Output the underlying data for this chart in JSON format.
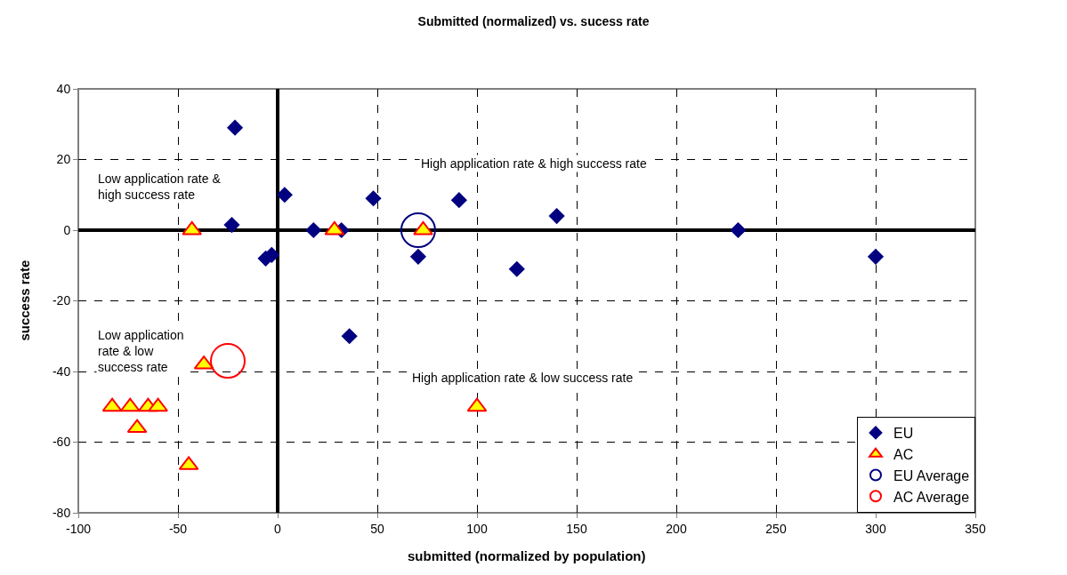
{
  "chart_data": {
    "type": "scatter",
    "title": "Submitted (normalized) vs. sucess rate",
    "xlabel": "submitted (normalized by population)",
    "ylabel": "success rate",
    "annotations": [
      "Low application rate &\nhigh success rate",
      "High application rate & high success rate",
      "Low application\nrate & low\nsuccess rate",
      "High application rate & low success rate"
    ],
    "xlim": [
      -100,
      350
    ],
    "xticks": [
      -100,
      -50,
      0,
      50,
      100,
      150,
      200,
      250,
      300,
      350
    ],
    "ylim": [
      -80,
      40
    ],
    "yticks": [
      -80,
      -60,
      -40,
      -20,
      0,
      20,
      40
    ],
    "grid": true,
    "legend": "bottom right",
    "series": [
      {
        "name": "EU",
        "color": "#000080",
        "marker": "diamond",
        "x": [
          -21.4,
          -23,
          -6,
          -3,
          3.5,
          18,
          32,
          48,
          70.5,
          91,
          36,
          120,
          140,
          231,
          300
        ],
        "values": [
          29,
          1.5,
          -8,
          -7,
          10,
          0,
          0,
          9,
          -7.5,
          8.5,
          -30,
          -11,
          4,
          0,
          -7.5
        ]
      },
      {
        "name": "AC",
        "color": "#ffff00",
        "marker": "triangle",
        "x": [
          -43,
          28.5,
          73,
          -37,
          -83,
          -74,
          -65,
          -60,
          -70.5,
          -44.6,
          100
        ],
        "values": [
          0,
          0,
          0,
          -38,
          -50,
          -50,
          -50,
          -50,
          -56,
          -66.5,
          -50
        ]
      },
      {
        "name": "EU Average",
        "color": "#000080",
        "marker": "circle",
        "x": [
          70.5
        ],
        "values": [
          0
        ]
      },
      {
        "name": "AC Average",
        "color": "#ff0000",
        "marker": "circle",
        "x": [
          -25
        ],
        "values": [
          -37
        ]
      }
    ]
  }
}
